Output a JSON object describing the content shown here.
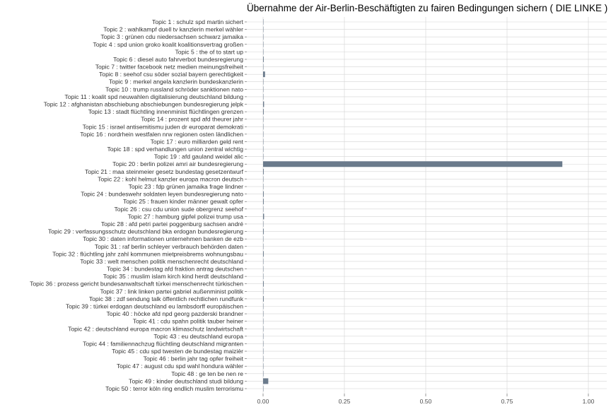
{
  "chart_data": {
    "type": "bar",
    "orientation": "horizontal",
    "title": "Übernahme der Air-Berlin-Beschäftigten zu fairen Bedingungen sichern ( DIE LINKE )",
    "xlabel": "",
    "ylabel": "",
    "xlim": [
      0,
      1
    ],
    "xticks": [
      "0.00",
      "0.25",
      "0.50",
      "0.75",
      "1.00"
    ],
    "grid": true,
    "bar_color": "#6b7b8c",
    "categories": [
      "Topic 1 : schulz spd martin sichert",
      "Topic 2 : wahlkampf duell tv kanzlerin merkel wähler",
      "Topic 3 : grünen cdu niedersachsen schwarz jamaika",
      "Topic 4 : spd union groko koalit koalitionsvertrag großen",
      "Topic 5 : the of to start up",
      "Topic 6 : diesel auto fahrverbot bundesregierung",
      "Topic 7 : twitter facebook netz medien meinungsfreiheit",
      "Topic 8 : seehof csu söder sozial bayern gerechtigkeit",
      "Topic 9 : merkel angela kanzlerin bundeskanzlerin",
      "Topic 10 : trump russland schröder sanktionen nato",
      "Topic 11 : koalit spd neuwahlen digitalisierung deutschland bildung",
      "Topic 12 : afghanistan abschiebung abschiebungen bundesregierung jelpk",
      "Topic 13 : stadt flüchtling innenminist flüchtlingen grenzen",
      "Topic 14 : prozent spd afd theurer jahr",
      "Topic 15 : israel antisemitismu juden dr europarat demokrati",
      "Topic 16 : nordrhein westfalen nrw regionen osten ländlichen",
      "Topic 17 : euro milliarden geld rent",
      "Topic 18 : spd verhandlungen union zentral wichtig",
      "Topic 19 : afd gauland weidel alic",
      "Topic 20 : berlin polizei amri air bundesregierung",
      "Topic 21 : maa steinmeier gesetz bundestag gesetzentwurf",
      "Topic 22 : kohl helmut kanzler europa macron deutsch",
      "Topic 23 : fdp grünen jamaika frage lindner",
      "Topic 24 : bundeswehr soldaten leyen bundesregierung nato",
      "Topic 25 : frauen kinder männer gewalt opfer",
      "Topic 26 : csu cdu union sude obergrenz seehof",
      "Topic 27 : hamburg gipfel polizei trump usa",
      "Topic 28 : afd petri partei poggenburg sachsen andré",
      "Topic 29 : verfassungsschutz deutschland bka erdogan bundesregierung",
      "Topic 30 : daten informationen unternehmen banken de ezb",
      "Topic 31 : raf berlin schleyer verbrauch behörden daten",
      "Topic 32 : flüchtling jahr zahl kommunen mietpreisbrems wohnungsbau",
      "Topic 33 : welt menschen politik menschenrecht deutschland",
      "Topic 34 : bundestag afd fraktion antrag deutschen",
      "Topic 35 : muslim islam kirch kind herdt deutschland",
      "Topic 36 : prozess gericht bundesanwaltschaft türkei menschenrecht türkischen",
      "Topic 37 : link linken partei gabriel außenminist politik",
      "Topic 38 : zdf sendung talk öffentlich rechtlichen rundfunk",
      "Topic 39 : türkei erdogan deutschland eu lambsdorff europäischen",
      "Topic 40 : höcke afd npd georg pazderski brandner",
      "Topic 41 : cdu spahn politik tauber heiner",
      "Topic 42 : deutschland europa macron klimaschutz landwirtschaft",
      "Topic 43 : eu deutschland europa",
      "Topic 44 : familiennachzug flüchtling deutschland migranten",
      "Topic 45 : cdu spd twesten de bundestag maizièr",
      "Topic 46 : berlin jahr tag opfer freiheit",
      "Topic 47 : august cdu spd wahl hondura wähler",
      "Topic 48 : ge ten be nen re",
      "Topic 49 : kinder deutschland studi bildung",
      "Topic 50 : terror köln ring endlich muslim terrorismu"
    ],
    "values": [
      0.001,
      0.001,
      0.0005,
      0.001,
      0.0005,
      0.002,
      0.001,
      0.006,
      0.001,
      0.001,
      0.001,
      0.003,
      0.002,
      0.0005,
      0.001,
      0.001,
      0.001,
      0.0005,
      0.0005,
      0.92,
      0.002,
      0.0005,
      0.0005,
      0.002,
      0.002,
      0.001,
      0.003,
      0.0005,
      0.002,
      0.001,
      0.001,
      0.002,
      0.001,
      0.0005,
      0.001,
      0.002,
      0.001,
      0.002,
      0.001,
      0.0005,
      0.0005,
      0.0005,
      0.001,
      0.0005,
      0.001,
      0.0005,
      0.001,
      0.0005,
      0.016,
      0.001
    ]
  }
}
